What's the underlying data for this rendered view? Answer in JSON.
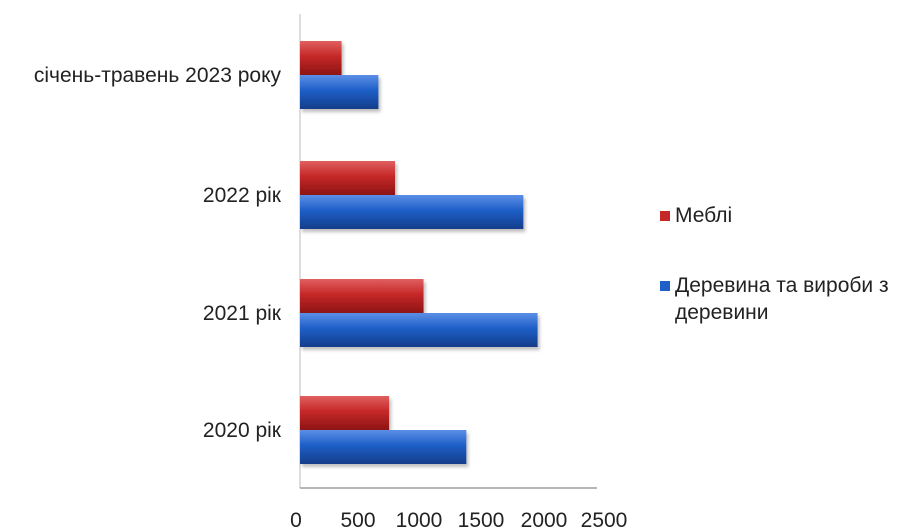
{
  "chart_data": {
    "type": "bar",
    "orientation": "horizontal",
    "title": "",
    "xlabel": "",
    "ylabel": "",
    "categories": [
      "2020 рік",
      "2021 рік",
      "2022 рік",
      "січень-травень 2023 року"
    ],
    "series": [
      {
        "name": "Меблі",
        "color": "#c62828",
        "values": [
          750,
          1040,
          800,
          350
        ]
      },
      {
        "name": "Деревина та вироби з деревини",
        "color": "#1f5fc8",
        "values": [
          1400,
          2000,
          1880,
          660
        ]
      }
    ],
    "xlim": [
      0,
      2500
    ],
    "xticks": [
      "0",
      "500",
      "1000",
      "1500",
      "2000",
      "2500"
    ],
    "grid": false,
    "legend_position": "right",
    "legend_order": [
      {
        "label": "Меблі",
        "color": "#c62828"
      },
      {
        "label": "Деревина та вироби з",
        "label2": "деревини",
        "color": "#1f5fc8"
      }
    ]
  }
}
